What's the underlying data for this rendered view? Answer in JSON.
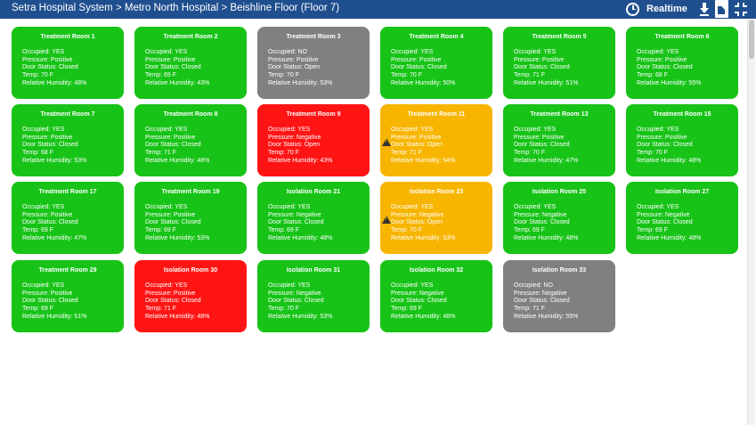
{
  "header": {
    "breadcrumb": "Setra Hospital System > Metro North Hospital > Beishline Floor (Floor 7)",
    "realtime_label": "Realtime",
    "background_color": "#1f4f8f"
  },
  "icons": {
    "clock": "clock-icon",
    "download": "download-icon",
    "export": "export-icon",
    "collapse": "collapse-icon",
    "warning": "warning-icon"
  },
  "status_colors": {
    "green": "#17c317",
    "gray": "#808080",
    "red": "#ff1414",
    "amber": "#f7b500"
  },
  "labels": {
    "occupied": "Occupied: ",
    "pressure": "Pressure: ",
    "door": "Door Status: ",
    "temp": "Temp: ",
    "humidity": "Relative Humidity: "
  },
  "rooms": [
    {
      "name": "Treatment Room 1",
      "status": "green",
      "occupied": "YES",
      "pressure": "Positive",
      "door": "Closed",
      "temp": "70 F",
      "humidity": "48%",
      "warning": false
    },
    {
      "name": "Treatment Room 2",
      "status": "green",
      "occupied": "YES",
      "pressure": "Positive",
      "door": "Closed",
      "temp": "69 F",
      "humidity": "43%",
      "warning": false
    },
    {
      "name": "Treatment Room 3",
      "status": "gray",
      "occupied": "NO",
      "pressure": "Positive",
      "door": "Open",
      "temp": "70 F",
      "humidity": "53%",
      "warning": false
    },
    {
      "name": "Treatment Room 4",
      "status": "green",
      "occupied": "YES",
      "pressure": "Positive",
      "door": "Closed",
      "temp": "70 F",
      "humidity": "50%",
      "warning": false
    },
    {
      "name": "Treatment Room 5",
      "status": "green",
      "occupied": "YES",
      "pressure": "Positive",
      "door": "Closed",
      "temp": "71 F",
      "humidity": "51%",
      "warning": false
    },
    {
      "name": "Treatment Room 6",
      "status": "green",
      "occupied": "YES",
      "pressure": "Positive",
      "door": "Closed",
      "temp": "68 F",
      "humidity": "55%",
      "warning": false
    },
    {
      "name": "Treatment Room 7",
      "status": "green",
      "occupied": "YES",
      "pressure": "Positive",
      "door": "Closed",
      "temp": "68 F",
      "humidity": "53%",
      "warning": false
    },
    {
      "name": "Treatment Room 8",
      "status": "green",
      "occupied": "YES",
      "pressure": "Positive",
      "door": "Closed",
      "temp": "71 F",
      "humidity": "48%",
      "warning": false
    },
    {
      "name": "Treatment Room 9",
      "status": "red",
      "occupied": "YES",
      "pressure": "Negative",
      "door": "Open",
      "temp": "70 F",
      "humidity": "43%",
      "warning": false
    },
    {
      "name": "Treatment Room 11",
      "status": "amber",
      "occupied": "YES",
      "pressure": "Positive",
      "door": "Open",
      "temp": "71 F",
      "humidity": "54%",
      "warning": true
    },
    {
      "name": "Treatment Room 13",
      "status": "green",
      "occupied": "YES",
      "pressure": "Positive",
      "door": "Closed",
      "temp": "70 F",
      "humidity": "47%",
      "warning": false
    },
    {
      "name": "Treatment Room 15",
      "status": "green",
      "occupied": "YES",
      "pressure": "Positive",
      "door": "Closed",
      "temp": "70 F",
      "humidity": "48%",
      "warning": false
    },
    {
      "name": "Treatment Room 17",
      "status": "green",
      "occupied": "YES",
      "pressure": "Positive",
      "door": "Closed",
      "temp": "69 F",
      "humidity": "47%",
      "warning": false
    },
    {
      "name": "Treatment Room 19",
      "status": "green",
      "occupied": "YES",
      "pressure": "Positive",
      "door": "Closed",
      "temp": "69 F",
      "humidity": "53%",
      "warning": false
    },
    {
      "name": "Isolation Room 21",
      "status": "green",
      "occupied": "YES",
      "pressure": "Negative",
      "door": "Closed",
      "temp": "69 F",
      "humidity": "48%",
      "warning": false
    },
    {
      "name": "Isolation Room 23",
      "status": "amber",
      "occupied": "YES",
      "pressure": "Negative",
      "door": "Open",
      "temp": "70 F",
      "humidity": "53%",
      "warning": true
    },
    {
      "name": "Isolation Room 25",
      "status": "green",
      "occupied": "YES",
      "pressure": "Negative",
      "door": "Closed",
      "temp": "69 F",
      "humidity": "48%",
      "warning": false
    },
    {
      "name": "Isolation Room 27",
      "status": "green",
      "occupied": "YES",
      "pressure": "Negative",
      "door": "Closed",
      "temp": "69 F",
      "humidity": "48%",
      "warning": false
    },
    {
      "name": "Treatment Room 29",
      "status": "green",
      "occupied": "YES",
      "pressure": "Positive",
      "door": "Closed",
      "temp": "69 F",
      "humidity": "51%",
      "warning": false
    },
    {
      "name": "Isolation Room 30",
      "status": "red",
      "occupied": "YES",
      "pressure": "Positive",
      "door": "Closed",
      "temp": "71 F",
      "humidity": "48%",
      "warning": false
    },
    {
      "name": "Isolation Room 31",
      "status": "green",
      "occupied": "YES",
      "pressure": "Negative",
      "door": "Closed",
      "temp": "70 F",
      "humidity": "53%",
      "warning": false
    },
    {
      "name": "Isolation Room 32",
      "status": "green",
      "occupied": "YES",
      "pressure": "Negative",
      "door": "Closed",
      "temp": "69 F",
      "humidity": "48%",
      "warning": false
    },
    {
      "name": "Isolation Room 33",
      "status": "gray",
      "occupied": "NO",
      "pressure": "Negative",
      "door": "Closed",
      "temp": "71 F",
      "humidity": "55%",
      "warning": false
    }
  ]
}
